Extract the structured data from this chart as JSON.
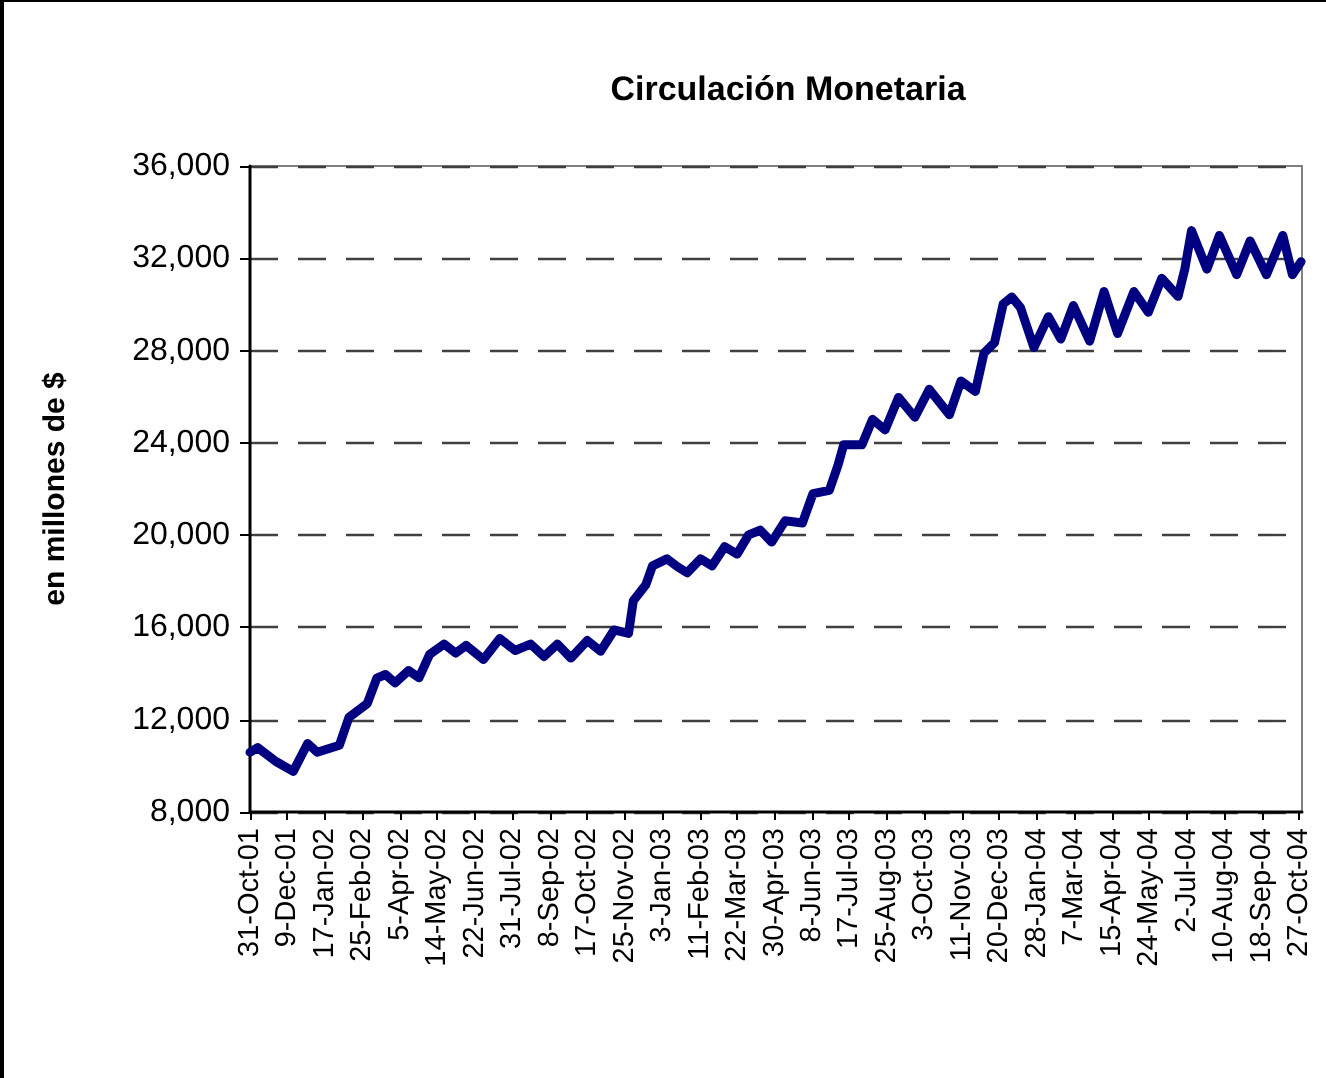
{
  "chart_data": {
    "type": "line",
    "title": "Circulación Monetaria",
    "ylabel": "en millones de $",
    "grid": "y",
    "xlim": [
      "2001-10-31",
      "2004-10-30"
    ],
    "xticks": [
      {
        "value": "2001-10-31",
        "label": "31-Oct-01"
      },
      {
        "value": "2001-12-09",
        "label": "9-Dec-01"
      },
      {
        "value": "2002-01-17",
        "label": "17-Jan-02"
      },
      {
        "value": "2002-02-25",
        "label": "25-Feb-02"
      },
      {
        "value": "2002-04-05",
        "label": "5-Apr-02"
      },
      {
        "value": "2002-05-14",
        "label": "14-May-02"
      },
      {
        "value": "2002-06-22",
        "label": "22-Jun-02"
      },
      {
        "value": "2002-07-31",
        "label": "31-Jul-02"
      },
      {
        "value": "2002-09-08",
        "label": "8-Sep-02"
      },
      {
        "value": "2002-10-17",
        "label": "17-Oct-02"
      },
      {
        "value": "2002-11-25",
        "label": "25-Nov-02"
      },
      {
        "value": "2003-01-03",
        "label": "3-Jan-03"
      },
      {
        "value": "2003-02-11",
        "label": "11-Feb-03"
      },
      {
        "value": "2003-03-22",
        "label": "22-Mar-03"
      },
      {
        "value": "2003-04-30",
        "label": "30-Apr-03"
      },
      {
        "value": "2003-06-08",
        "label": "8-Jun-03"
      },
      {
        "value": "2003-07-17",
        "label": "17-Jul-03"
      },
      {
        "value": "2003-08-25",
        "label": "25-Aug-03"
      },
      {
        "value": "2003-10-03",
        "label": "3-Oct-03"
      },
      {
        "value": "2003-11-11",
        "label": "11-Nov-03"
      },
      {
        "value": "2003-12-20",
        "label": "20-Dec-03"
      },
      {
        "value": "2004-01-28",
        "label": "28-Jan-04"
      },
      {
        "value": "2004-03-07",
        "label": "7-Mar-04"
      },
      {
        "value": "2004-04-15",
        "label": "15-Apr-04"
      },
      {
        "value": "2004-05-24",
        "label": "24-May-04"
      },
      {
        "value": "2004-07-02",
        "label": "2-Jul-04"
      },
      {
        "value": "2004-08-10",
        "label": "10-Aug-04"
      },
      {
        "value": "2004-09-18",
        "label": "18-Sep-04"
      },
      {
        "value": "2004-10-27",
        "label": "27-Oct-04"
      }
    ],
    "ylim": [
      8000,
      36000
    ],
    "yticks": [
      {
        "value": 8000,
        "label": "8,000"
      },
      {
        "value": 12000,
        "label": "12,000"
      },
      {
        "value": 16000,
        "label": "16,000"
      },
      {
        "value": 20000,
        "label": "20,000"
      },
      {
        "value": 24000,
        "label": "24,000"
      },
      {
        "value": 28000,
        "label": "28,000"
      },
      {
        "value": 32000,
        "label": "32,000"
      },
      {
        "value": 36000,
        "label": "36,000"
      }
    ],
    "x": [
      "2001-10-31",
      "2001-11-08",
      "2001-11-27",
      "2001-12-15",
      "2001-12-30",
      "2002-01-09",
      "2002-02-01",
      "2002-02-11",
      "2002-03-02",
      "2002-03-12",
      "2002-03-21",
      "2002-03-31",
      "2002-04-14",
      "2002-04-25",
      "2002-05-06",
      "2002-05-21",
      "2002-06-02",
      "2002-06-13",
      "2002-07-01",
      "2002-07-18",
      "2002-08-03",
      "2002-08-19",
      "2002-09-02",
      "2002-09-16",
      "2002-09-30",
      "2002-10-17",
      "2002-10-31",
      "2002-11-14",
      "2002-11-29",
      "2002-12-04",
      "2002-12-17",
      "2002-12-24",
      "2003-01-08",
      "2003-01-19",
      "2003-01-29",
      "2003-02-12",
      "2003-02-24",
      "2003-03-09",
      "2003-03-22",
      "2003-04-03",
      "2003-04-15",
      "2003-04-27",
      "2003-05-11",
      "2003-05-29",
      "2003-06-09",
      "2003-06-26",
      "2003-07-05",
      "2003-07-11",
      "2003-07-30",
      "2003-08-10",
      "2003-08-23",
      "2003-09-06",
      "2003-09-23",
      "2003-10-08",
      "2003-10-29",
      "2003-11-10",
      "2003-11-25",
      "2003-12-04",
      "2003-12-15",
      "2003-12-24",
      "2004-01-02",
      "2004-01-11",
      "2004-01-25",
      "2004-02-09",
      "2004-02-22",
      "2004-03-06",
      "2004-03-23",
      "2004-04-07",
      "2004-04-21",
      "2004-05-08",
      "2004-05-23",
      "2004-06-06",
      "2004-06-23",
      "2004-06-30",
      "2004-07-07",
      "2004-07-23",
      "2004-08-05",
      "2004-08-23",
      "2004-09-06",
      "2004-09-23",
      "2004-10-10",
      "2004-10-20",
      "2004-10-29"
    ],
    "series": [
      {
        "color": "#000080",
        "values": [
          10590,
          10790,
          10190,
          9760,
          10970,
          10590,
          10890,
          12100,
          12700,
          13800,
          13960,
          13600,
          14130,
          13820,
          14830,
          15280,
          14890,
          15220,
          14610,
          15520,
          15000,
          15280,
          14740,
          15280,
          14670,
          15430,
          14970,
          15890,
          15740,
          17160,
          17850,
          18670,
          18970,
          18630,
          18370,
          18970,
          18670,
          19500,
          19180,
          20010,
          20220,
          19700,
          20620,
          20530,
          21800,
          21940,
          23030,
          23920,
          23920,
          25020,
          24560,
          25970,
          25110,
          26320,
          25220,
          26680,
          26230,
          27890,
          28350,
          30020,
          30320,
          29860,
          28130,
          29470,
          28500,
          29950,
          28410,
          30560,
          28740,
          30560,
          29660,
          31130,
          30350,
          31530,
          33200,
          31530,
          32990,
          31290,
          32750,
          31290,
          32990,
          31290,
          31850
        ]
      }
    ]
  }
}
